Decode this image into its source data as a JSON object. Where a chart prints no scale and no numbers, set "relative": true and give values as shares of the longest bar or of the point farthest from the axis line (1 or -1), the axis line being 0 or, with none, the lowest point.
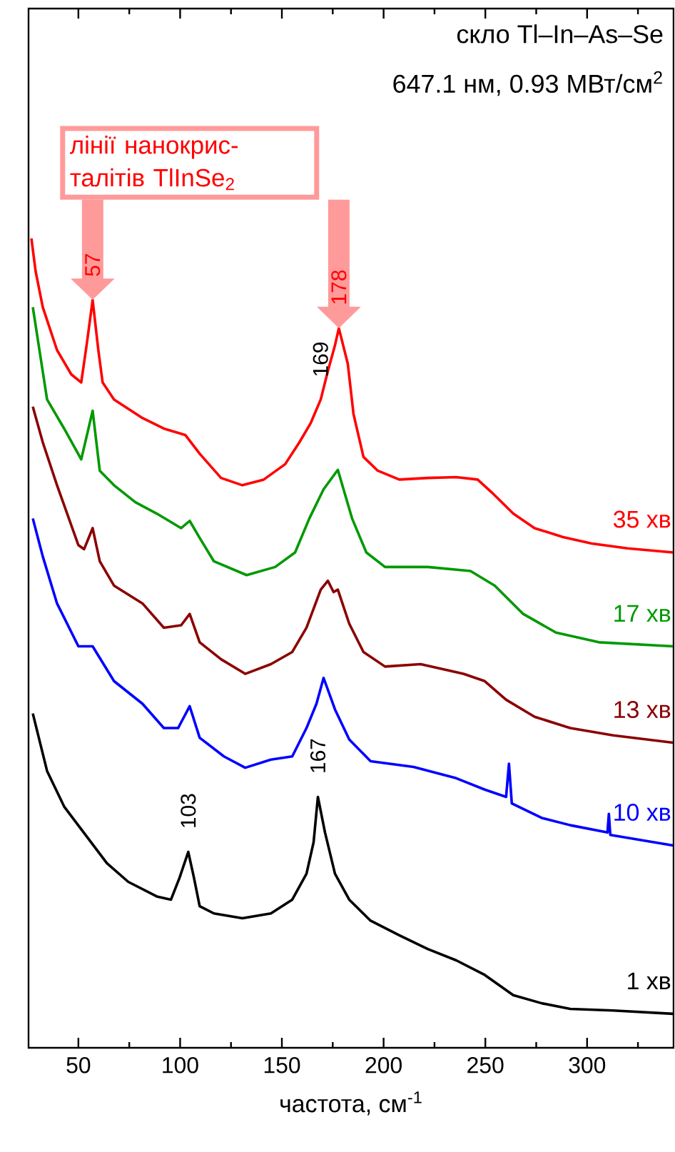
{
  "chart_data": {
    "type": "line",
    "relative": true,
    "xlabel": "частота, см$^{-1}$",
    "xlim": [
      25.5,
      342.5
    ],
    "xticks": [
      50,
      {
        "value": 75,
        "label": null
      },
      100,
      {
        "value": 125,
        "label": null
      },
      150,
      {
        "value": 175,
        "label": null
      },
      200,
      {
        "value": 225,
        "label": null
      },
      250,
      {
        "value": 275,
        "label": null
      },
      300,
      {
        "value": 325,
        "label": null
      }
    ],
    "annotations": [
      "скло Tl–In–As–Se",
      "647.1 нм, 0.93 МВт/см$^{2}$",
      "лінії нанокрис- талітів TlInSe$_{2}$",
      {
        "text": "57",
        "x": 57,
        "y": 0.924
      },
      {
        "text": "178",
        "x": 178,
        "y": 0.889
      },
      {
        "text": "169",
        "x": 169,
        "y": 0.8
      },
      {
        "text": "103",
        "x": 104,
        "y": 0.242
      },
      {
        "text": "167",
        "x": 167.7,
        "y": 0.31
      }
    ],
    "series": [
      {
        "name": "35 хв",
        "color": "#ff0000",
        "x": [
          26.9,
          29.0,
          32.5,
          39.5,
          46.5,
          51.4,
          54.2,
          57.0,
          59.8,
          61.9,
          67.5,
          81.5,
          92.0,
          102.6,
          109.6,
          120.1,
          130.6,
          141.1,
          151.6,
          158.6,
          164.2,
          169.1,
          172.6,
          176.1,
          178.0,
          182.4,
          185.2,
          190.1,
          197.1,
          207.7,
          221.7,
          235.7,
          246.2,
          253.2,
          263.7,
          274.2,
          288.2,
          302.3,
          319.8,
          342.2
        ],
        "values": [
          1.0,
          0.959,
          0.915,
          0.862,
          0.832,
          0.822,
          0.871,
          0.924,
          0.862,
          0.822,
          0.801,
          0.778,
          0.765,
          0.757,
          0.734,
          0.704,
          0.695,
          0.702,
          0.721,
          0.748,
          0.772,
          0.801,
          0.836,
          0.868,
          0.889,
          0.845,
          0.783,
          0.73,
          0.713,
          0.702,
          0.704,
          0.705,
          0.702,
          0.686,
          0.66,
          0.642,
          0.631,
          0.623,
          0.617,
          0.612
        ]
      },
      {
        "name": "17 хв",
        "color": "#009900",
        "x": [
          27.6,
          34.6,
          43.0,
          51.4,
          54.2,
          57.0,
          60.5,
          67.5,
          78.0,
          88.5,
          100.5,
          104.7,
          109.6,
          116.6,
          132.7,
          146.7,
          156.5,
          163.5,
          170.5,
          177.5,
          184.5,
          191.5,
          200.7,
          221.7,
          242.7,
          254.6,
          268.6,
          284.7,
          305.8,
          342.2
        ],
        "values": [
          0.915,
          0.801,
          0.765,
          0.727,
          0.757,
          0.787,
          0.713,
          0.695,
          0.674,
          0.66,
          0.642,
          0.651,
          0.63,
          0.601,
          0.584,
          0.594,
          0.612,
          0.654,
          0.69,
          0.714,
          0.654,
          0.612,
          0.594,
          0.594,
          0.589,
          0.571,
          0.536,
          0.513,
          0.501,
          0.496
        ]
      },
      {
        "name": "13 хв",
        "color": "#8b0000",
        "x": [
          27.6,
          32.5,
          39.5,
          50.0,
          52.8,
          57.0,
          60.5,
          67.5,
          81.5,
          92.0,
          100.5,
          104.7,
          109.6,
          120.1,
          132.0,
          144.6,
          155.1,
          162.1,
          169.1,
          172.6,
          175.4,
          177.5,
          183.1,
          190.1,
          200.7,
          218.2,
          239.2,
          249.7,
          260.2,
          274.2,
          291.7,
          312.8,
          342.2
        ],
        "values": [
          0.792,
          0.748,
          0.695,
          0.621,
          0.616,
          0.642,
          0.601,
          0.571,
          0.549,
          0.519,
          0.522,
          0.536,
          0.501,
          0.48,
          0.462,
          0.474,
          0.489,
          0.519,
          0.566,
          0.577,
          0.563,
          0.566,
          0.524,
          0.489,
          0.471,
          0.474,
          0.462,
          0.453,
          0.43,
          0.409,
          0.395,
          0.386,
          0.377
        ]
      },
      {
        "name": "10 хв",
        "color": "#0000ff",
        "x": [
          27.6,
          32.5,
          39.5,
          50.0,
          57.0,
          67.5,
          81.5,
          92.0,
          99.0,
          104.7,
          109.6,
          121.5,
          132.0,
          144.6,
          155.1,
          162.1,
          167.0,
          170.5,
          176.1,
          183.1,
          193.6,
          214.7,
          235.7,
          249.7,
          260.2,
          261.6,
          263.0,
          277.7,
          291.7,
          310.0,
          310.7,
          311.4,
          342.2
        ],
        "values": [
          0.654,
          0.607,
          0.549,
          0.496,
          0.496,
          0.453,
          0.425,
          0.395,
          0.395,
          0.422,
          0.383,
          0.36,
          0.346,
          0.356,
          0.36,
          0.395,
          0.425,
          0.457,
          0.418,
          0.381,
          0.354,
          0.347,
          0.333,
          0.319,
          0.31,
          0.351,
          0.302,
          0.284,
          0.275,
          0.266,
          0.289,
          0.263,
          0.25
        ]
      },
      {
        "name": "1 хв",
        "color": "#000000",
        "x": [
          27.6,
          34.6,
          43.0,
          53.5,
          64.0,
          74.5,
          88.5,
          95.5,
          99.7,
          104.0,
          106.8,
          109.6,
          116.6,
          130.6,
          144.6,
          155.1,
          162.1,
          165.6,
          167.7,
          171.2,
          176.1,
          183.1,
          193.6,
          207.7,
          221.7,
          235.7,
          249.7,
          263.7,
          277.7,
          291.7,
          312.8,
          342.2
        ],
        "values": [
          0.413,
          0.342,
          0.298,
          0.263,
          0.228,
          0.205,
          0.187,
          0.183,
          0.21,
          0.242,
          0.21,
          0.175,
          0.166,
          0.16,
          0.166,
          0.183,
          0.215,
          0.254,
          0.31,
          0.266,
          0.215,
          0.183,
          0.157,
          0.139,
          0.122,
          0.108,
          0.09,
          0.065,
          0.055,
          0.048,
          0.046,
          0.042
        ]
      }
    ]
  }
}
